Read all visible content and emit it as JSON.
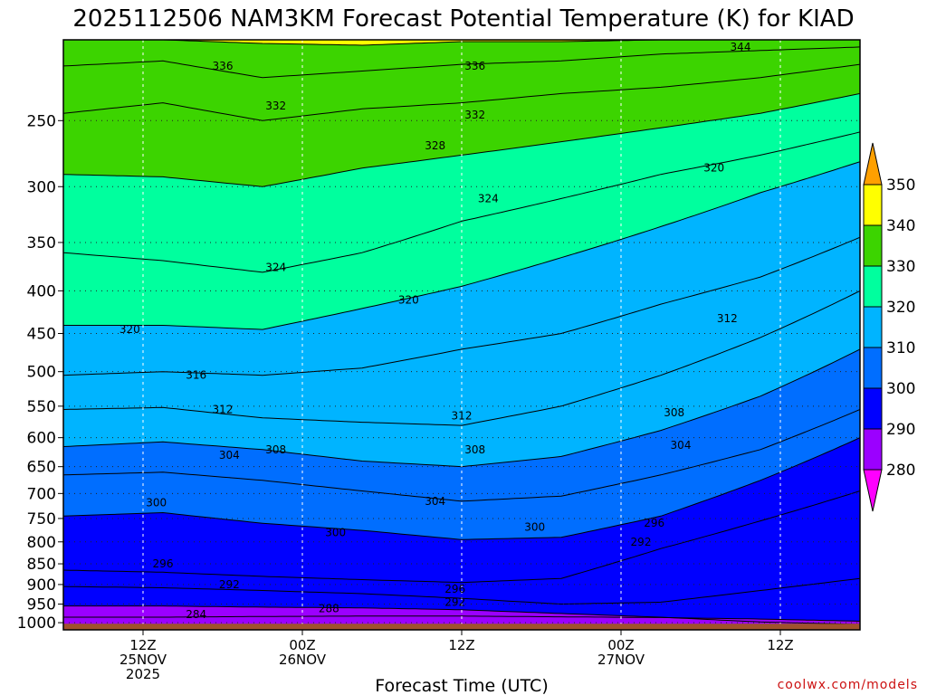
{
  "chart_data": {
    "type": "heatmap",
    "title": "2025112506 NAM3KM Forecast Potential Temperature (K) for KIAD",
    "xlabel": "Forecast Time (UTC)",
    "ylabel": "",
    "x_unit": "hours from 2025-11-25 06Z",
    "xlim": [
      0,
      60
    ],
    "y_scale": "log",
    "ylim": [
      1000,
      200
    ],
    "y_ticks": [
      250,
      300,
      350,
      400,
      450,
      500,
      550,
      600,
      650,
      700,
      750,
      800,
      850,
      900,
      950,
      1000
    ],
    "x_ticks": [
      {
        "x": 6,
        "lines": [
          "12Z",
          "25NOV",
          "2025"
        ]
      },
      {
        "x": 18,
        "lines": [
          "00Z",
          "26NOV"
        ]
      },
      {
        "x": 30,
        "lines": [
          "12Z"
        ]
      },
      {
        "x": 42,
        "lines": [
          "00Z",
          "27NOV"
        ]
      },
      {
        "x": 54,
        "lines": [
          "12Z"
        ]
      }
    ],
    "grid": true,
    "colorbar": {
      "levels": [
        280,
        290,
        300,
        310,
        320,
        330,
        340,
        350
      ],
      "colors": [
        "#ff00ff",
        "#9b00ff",
        "#0000ff",
        "#006eff",
        "#00b4ff",
        "#00ff9e",
        "#3cd400",
        "#ffff00",
        "#ffa000"
      ],
      "extend": "both"
    },
    "contour_interval": 2,
    "isentropes": [
      {
        "theta": 284,
        "pres": [
          985,
          985,
          983,
          982,
          982,
          984,
          986,
          990,
          996
        ]
      },
      {
        "theta": 288,
        "pres": [
          955,
          955,
          958,
          960,
          965,
          975,
          985,
          998,
          1005
        ]
      },
      {
        "theta": 292,
        "pres": [
          905,
          908,
          915,
          923,
          935,
          950,
          945,
          915,
          885
        ]
      },
      {
        "theta": 296,
        "pres": [
          865,
          870,
          880,
          888,
          895,
          885,
          815,
          755,
          695
        ]
      },
      {
        "theta": 300,
        "pres": [
          745,
          738,
          760,
          775,
          795,
          790,
          745,
          675,
          600
        ]
      },
      {
        "theta": 304,
        "pres": [
          665,
          660,
          675,
          695,
          715,
          705,
          665,
          620,
          555
        ]
      },
      {
        "theta": 308,
        "pres": [
          615,
          607,
          620,
          640,
          650,
          632,
          588,
          535,
          470
        ]
      },
      {
        "theta": 312,
        "pres": [
          555,
          552,
          568,
          575,
          580,
          550,
          505,
          455,
          400
        ]
      },
      {
        "theta": 316,
        "pres": [
          505,
          500,
          505,
          495,
          470,
          450,
          415,
          385,
          345
        ]
      },
      {
        "theta": 320,
        "pres": [
          440,
          440,
          445,
          420,
          395,
          365,
          335,
          305,
          280
        ]
      },
      {
        "theta": 324,
        "pres": [
          360,
          368,
          380,
          360,
          330,
          310,
          290,
          275,
          258
        ]
      },
      {
        "theta": 328,
        "pres": [
          290,
          292,
          300,
          285,
          275,
          265,
          255,
          245,
          232
        ]
      },
      {
        "theta": 332,
        "pres": [
          245,
          238,
          250,
          242,
          238,
          232,
          228,
          222,
          214
        ]
      },
      {
        "theta": 336,
        "pres": [
          215,
          212,
          222,
          218,
          214,
          212,
          208,
          206,
          204
        ]
      },
      {
        "theta": 340,
        "pres": [
          200,
          200,
          202,
          203,
          201,
          201,
          200,
          200,
          200
        ]
      },
      {
        "theta": 344,
        "pres": [
          198,
          198,
          198,
          198,
          198,
          199,
          198,
          198,
          198
        ]
      }
    ],
    "isentrope_x": [
      0,
      7.5,
      15,
      22.5,
      30,
      37.5,
      45,
      52.5,
      60
    ],
    "contour_labels": [
      {
        "text": "336",
        "x": 12.0,
        "p": 215
      },
      {
        "text": "336",
        "x": 31.0,
        "p": 215
      },
      {
        "text": "344",
        "x": 51.0,
        "p": 204
      },
      {
        "text": "332",
        "x": 16.0,
        "p": 240
      },
      {
        "text": "332",
        "x": 31.0,
        "p": 246
      },
      {
        "text": "328",
        "x": 28.0,
        "p": 268
      },
      {
        "text": "320",
        "x": 49.0,
        "p": 285
      },
      {
        "text": "324",
        "x": 32.0,
        "p": 310
      },
      {
        "text": "324",
        "x": 16.0,
        "p": 375
      },
      {
        "text": "320",
        "x": 26.0,
        "p": 410
      },
      {
        "text": "320",
        "x": 5.0,
        "p": 445
      },
      {
        "text": "312",
        "x": 50.0,
        "p": 432
      },
      {
        "text": "316",
        "x": 10.0,
        "p": 505
      },
      {
        "text": "312",
        "x": 12.0,
        "p": 555
      },
      {
        "text": "312",
        "x": 30.0,
        "p": 565
      },
      {
        "text": "308",
        "x": 46.0,
        "p": 560
      },
      {
        "text": "304",
        "x": 12.5,
        "p": 630
      },
      {
        "text": "308",
        "x": 16.0,
        "p": 620
      },
      {
        "text": "308",
        "x": 31.0,
        "p": 620
      },
      {
        "text": "304",
        "x": 46.5,
        "p": 613
      },
      {
        "text": "300",
        "x": 7.0,
        "p": 718
      },
      {
        "text": "304",
        "x": 28.0,
        "p": 715
      },
      {
        "text": "296",
        "x": 44.5,
        "p": 760
      },
      {
        "text": "300",
        "x": 35.5,
        "p": 768
      },
      {
        "text": "300",
        "x": 20.5,
        "p": 780
      },
      {
        "text": "292",
        "x": 43.5,
        "p": 800
      },
      {
        "text": "296",
        "x": 7.5,
        "p": 850
      },
      {
        "text": "292",
        "x": 12.5,
        "p": 900
      },
      {
        "text": "296",
        "x": 29.5,
        "p": 912
      },
      {
        "text": "292",
        "x": 29.5,
        "p": 945
      },
      {
        "text": "288",
        "x": 20.0,
        "p": 962
      },
      {
        "text": "284",
        "x": 10.0,
        "p": 978
      }
    ],
    "terrain_color": "#a0522d"
  },
  "credit": "coolwx.com/models"
}
